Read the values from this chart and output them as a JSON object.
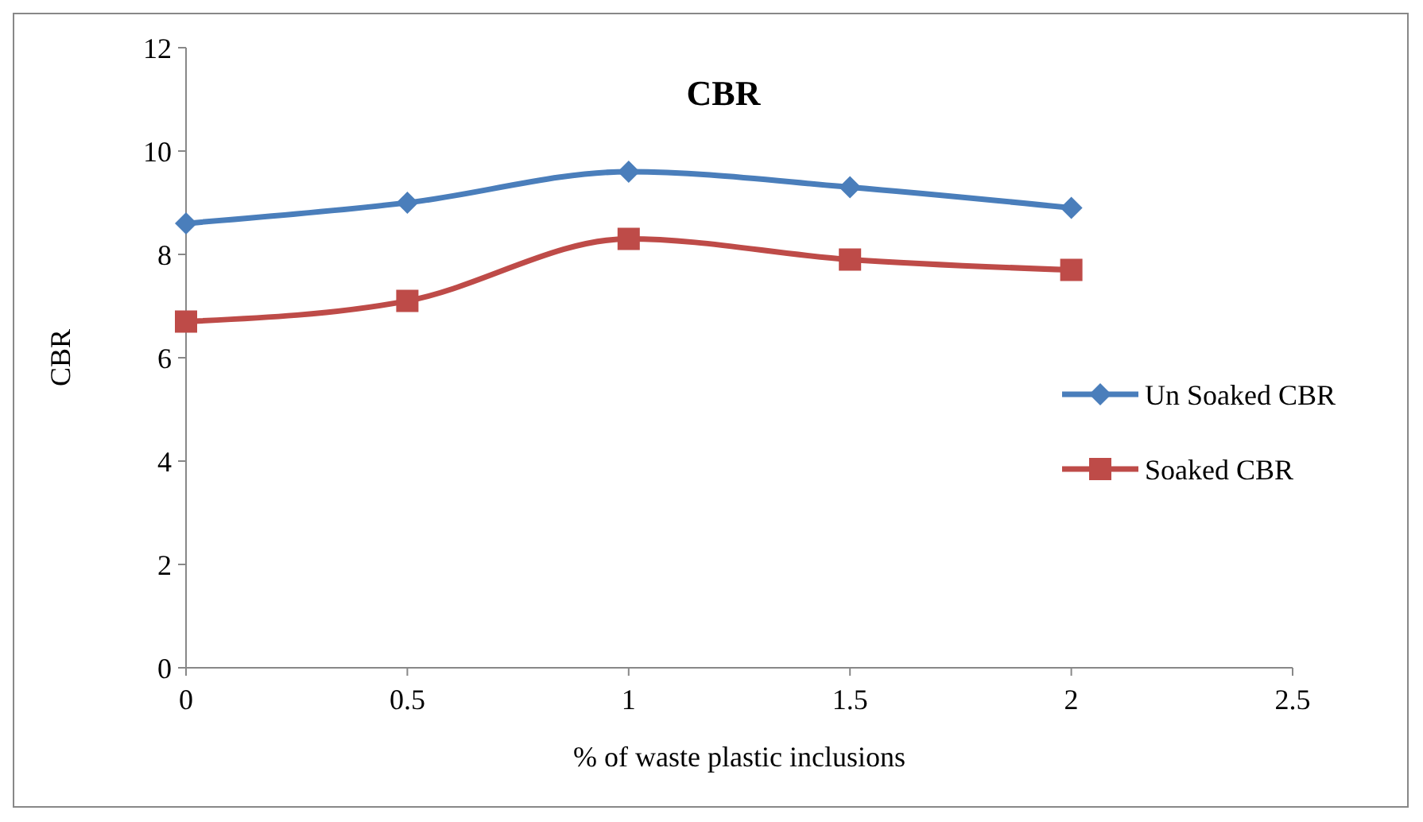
{
  "chart_data": {
    "type": "line",
    "title": "CBR",
    "xlabel": "% of waste plastic inclusions",
    "ylabel": "CBR",
    "x": [
      0,
      0.5,
      1,
      1.5,
      2
    ],
    "xlim": [
      0,
      2.5
    ],
    "xticks": [
      0,
      0.5,
      1,
      1.5,
      2,
      2.5
    ],
    "ylim": [
      0,
      12
    ],
    "yticks": [
      0,
      2,
      4,
      6,
      8,
      10,
      12
    ],
    "grid": false,
    "legend": "right",
    "series": [
      {
        "name": "Un Soaked CBR",
        "color": "#4a7ebb",
        "marker": "diamond",
        "values": [
          8.6,
          9.0,
          9.6,
          9.3,
          8.9
        ]
      },
      {
        "name": "Soaked CBR",
        "color": "#be4b48",
        "marker": "square",
        "values": [
          6.7,
          7.1,
          8.3,
          7.9,
          7.7
        ]
      }
    ]
  }
}
